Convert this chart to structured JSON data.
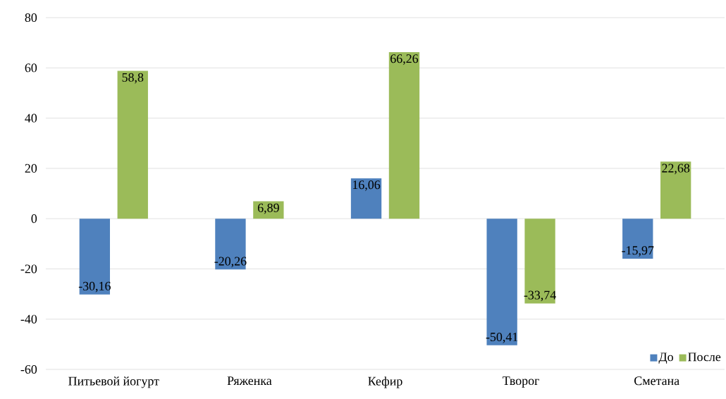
{
  "chart_data": {
    "type": "bar",
    "categories": [
      "Питьевой йогурт",
      "Ряженка",
      "Кефир",
      "Творог",
      "Сметана"
    ],
    "series": [
      {
        "name": "До",
        "color": "#4f81bd",
        "values": [
          -30.16,
          -20.26,
          16.06,
          -50.41,
          -15.97
        ],
        "value_labels": [
          "-30,16",
          "-20,26",
          "16,06",
          "-50,41",
          "-15,97"
        ]
      },
      {
        "name": "После",
        "color": "#9bbb59",
        "values": [
          58.8,
          6.89,
          66.26,
          -33.74,
          22.68
        ],
        "value_labels": [
          "58,8",
          "6,89",
          "66,26",
          "-33,74",
          "22,68"
        ]
      }
    ],
    "ylim": [
      -60,
      80
    ],
    "yticks": [
      -60,
      -40,
      -20,
      0,
      20,
      40,
      60,
      80
    ],
    "grid": "y",
    "legend": "bottom right"
  }
}
